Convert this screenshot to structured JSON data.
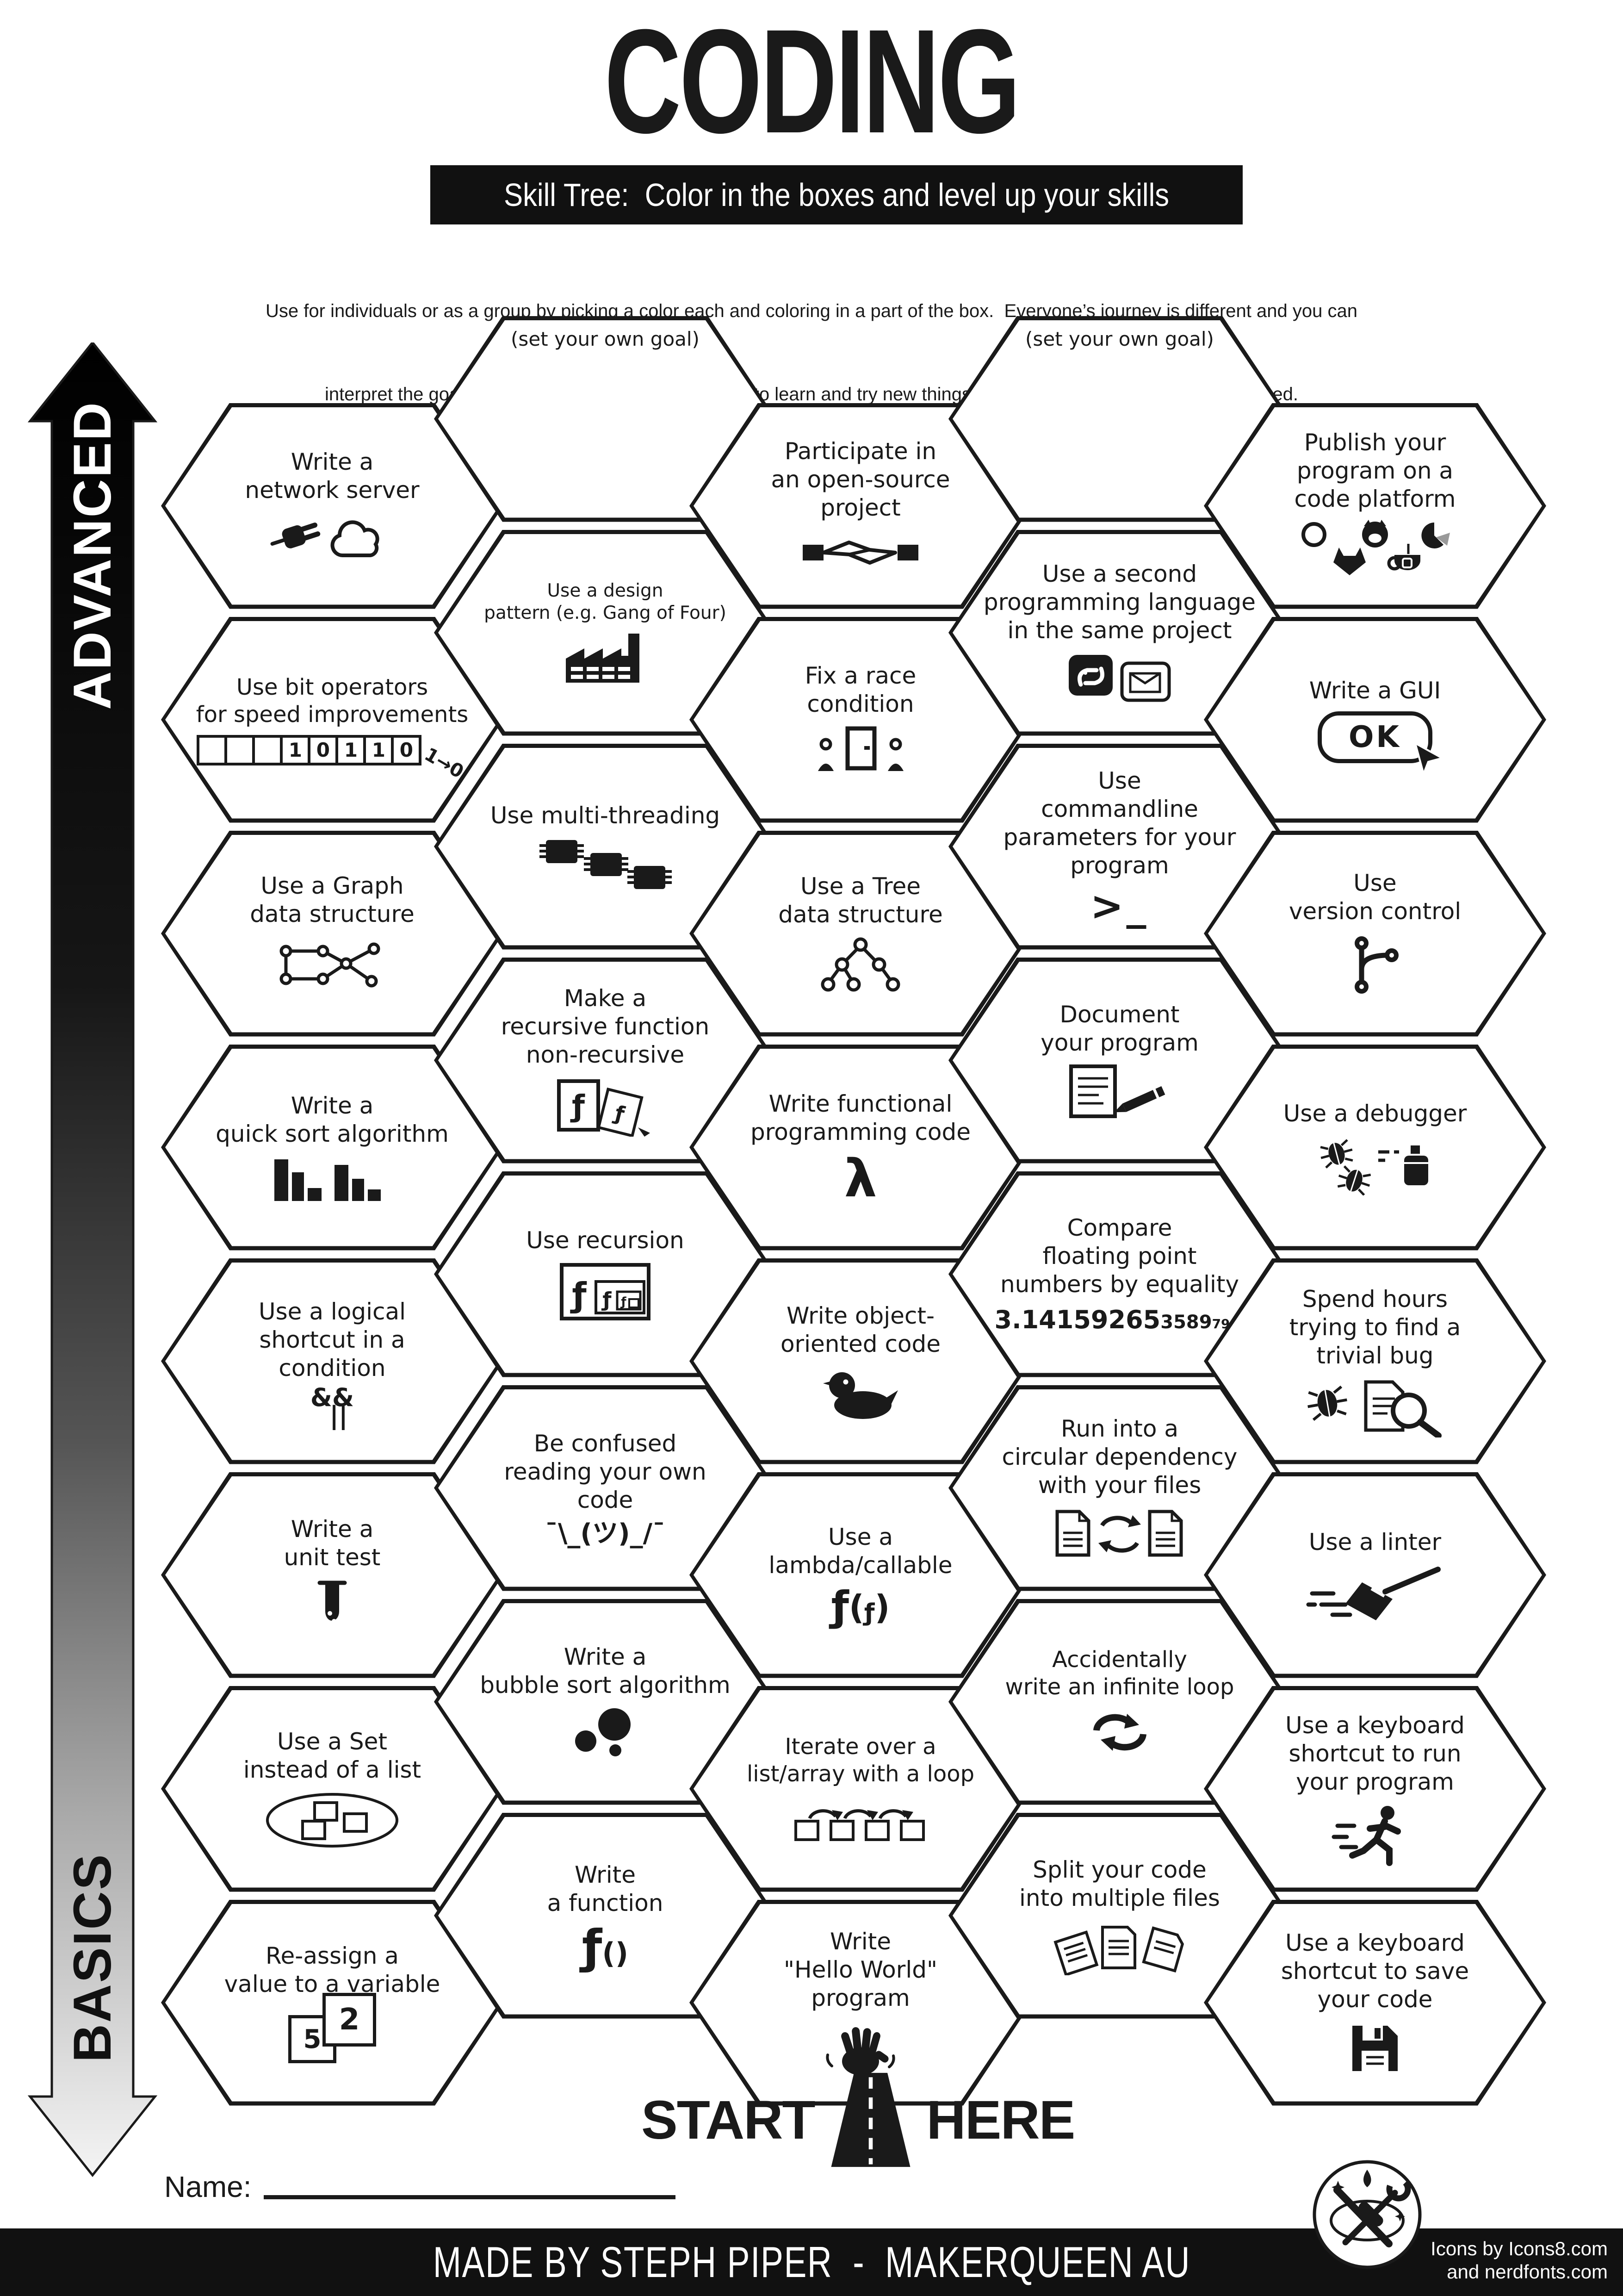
{
  "page": {
    "background": "#ffffff",
    "ink": "#1a1a1a",
    "footer_bg": "#111111"
  },
  "header": {
    "title": "CODING",
    "subtitle": "Skill Tree:  Color in the boxes and level up your skills",
    "instructions_line1": "Use for individuals or as a group by picking a color each and coloring in a part of the box.  Everyone’s journey is different and you can",
    "instructions_line2": "interpret the goals flexibly.  The aim is to inspire you to learn and try new things. Not everything needs to be completed."
  },
  "axis": {
    "top_label": "ADVANCED",
    "bottom_label": "BASICS"
  },
  "hexes": [
    {
      "col": 0,
      "row": 0,
      "label": "Write a\nnetwork server",
      "icon": "plug-cloud-icon"
    },
    {
      "col": 0,
      "row": 1,
      "label": "Use bit operators\nfor speed improvements",
      "icon": "binary-bits-icon",
      "icon_text": [
        "10110",
        "1→0"
      ]
    },
    {
      "col": 0,
      "row": 2,
      "label": "Use a Graph\ndata structure",
      "icon": "graph-nodes-icon"
    },
    {
      "col": 0,
      "row": 3,
      "label": "Write a\nquick sort algorithm",
      "icon": "sorted-bars-icon"
    },
    {
      "col": 0,
      "row": 4,
      "label": "Use a logical\nshortcut in a\ncondition",
      "icon": "logical-operators-icon",
      "icon_text": "&& ||"
    },
    {
      "col": 0,
      "row": 5,
      "label": "Write a\nunit test",
      "icon": "test-tube-icon"
    },
    {
      "col": 0,
      "row": 6,
      "label": "Use a Set\ninstead of a list",
      "icon": "set-ellipse-icon"
    },
    {
      "col": 0,
      "row": 7,
      "label": "Re-assign a\nvalue to a variable",
      "icon": "value-swap-icon",
      "icon_text": [
        "5",
        "2"
      ]
    },
    {
      "col": 1,
      "row": 0,
      "label": "(set your own goal)",
      "goal": true
    },
    {
      "col": 1,
      "row": 1,
      "label": "Use a design\npattern (e.g. Gang of Four)",
      "icon": "factory-icon"
    },
    {
      "col": 1,
      "row": 2,
      "label": "Use multi-threading",
      "icon": "cpu-chips-icon"
    },
    {
      "col": 1,
      "row": 3,
      "label": "Make a\nrecursive function\nnon-recursive",
      "icon": "function-cards-icon"
    },
    {
      "col": 1,
      "row": 4,
      "label": "Use recursion",
      "icon": "nested-functions-icon"
    },
    {
      "col": 1,
      "row": 5,
      "label": "Be confused\nreading your own\ncode",
      "icon": "shrug-icon",
      "icon_text": "¯\\_(ツ)_/¯"
    },
    {
      "col": 1,
      "row": 6,
      "label": "Write a\nbubble sort algorithm",
      "icon": "bubbles-icon"
    },
    {
      "col": 1,
      "row": 7,
      "label": "Write\na function",
      "icon": "function-icon",
      "icon_text": "ƒ()"
    },
    {
      "col": 2,
      "row": 0,
      "label": "Participate in\nan open-source\nproject",
      "icon": "handshake-icon"
    },
    {
      "col": 2,
      "row": 1,
      "label": "Fix a race\ncondition",
      "icon": "race-condition-icon"
    },
    {
      "col": 2,
      "row": 2,
      "label": "Use a Tree\ndata structure",
      "icon": "tree-structure-icon"
    },
    {
      "col": 2,
      "row": 3,
      "label": "Write functional\nprogramming code",
      "icon": "lambda-icon",
      "icon_text": "λ"
    },
    {
      "col": 2,
      "row": 4,
      "label": "Write object-\noriented code",
      "icon": "duck-icon"
    },
    {
      "col": 2,
      "row": 5,
      "label": "Use a\nlambda/callable",
      "icon": "lambda-callable-icon",
      "icon_text": "ƒ(ƒ)"
    },
    {
      "col": 2,
      "row": 6,
      "label": "Iterate over a\nlist/array with a loop",
      "icon": "loop-array-icon"
    },
    {
      "col": 2,
      "row": 7,
      "label": "Write\n\"Hello World\"\nprogram",
      "icon": "waving-hand-icon"
    },
    {
      "col": 3,
      "row": 0,
      "label": "(set your own goal)",
      "goal": true
    },
    {
      "col": 3,
      "row": 1,
      "label": "Use a second\nprogramming language\nin the same project",
      "icon": "two-languages-icon"
    },
    {
      "col": 3,
      "row": 2,
      "label": "Use\ncommandline\nparameters for your\nprogram",
      "icon": "terminal-prompt-icon",
      "icon_text": ">_"
    },
    {
      "col": 3,
      "row": 3,
      "label": "Document\nyour program",
      "icon": "document-pencil-icon"
    },
    {
      "col": 3,
      "row": 4,
      "label": "Compare\nfloating point\nnumbers by equality",
      "icon": "pi-digits-icon",
      "icon_text": "3.14159265358979..."
    },
    {
      "col": 3,
      "row": 5,
      "label": "Run into a\ncircular dependency\nwith your files",
      "icon": "circular-dependency-icon"
    },
    {
      "col": 3,
      "row": 6,
      "label": "Accidentally\nwrite an infinite loop",
      "icon": "infinite-loop-icon"
    },
    {
      "col": 3,
      "row": 7,
      "label": "Split your code\ninto multiple files",
      "icon": "split-files-icon"
    },
    {
      "col": 4,
      "row": 0,
      "label": "Publish your\nprogram on a\ncode platform",
      "icon": "code-platforms-icon"
    },
    {
      "col": 4,
      "row": 1,
      "label": "Write a GUI",
      "icon": "ok-button-icon",
      "icon_text": "OK"
    },
    {
      "col": 4,
      "row": 2,
      "label": "Use\nversion control",
      "icon": "git-branch-icon"
    },
    {
      "col": 4,
      "row": 3,
      "label": "Use a debugger",
      "icon": "debugger-icon"
    },
    {
      "col": 4,
      "row": 4,
      "label": "Spend hours\ntrying to find a\ntrivial bug",
      "icon": "bug-search-icon"
    },
    {
      "col": 4,
      "row": 5,
      "label": "Use a linter",
      "icon": "broom-icon"
    },
    {
      "col": 4,
      "row": 6,
      "label": "Use a keyboard\nshortcut to run\nyour program",
      "icon": "runner-icon"
    },
    {
      "col": 4,
      "row": 7,
      "label": "Use a keyboard\nshortcut to save\nyour code",
      "icon": "floppy-disk-icon"
    }
  ],
  "start": {
    "left": "START",
    "right": "HERE",
    "icon": "road-icon"
  },
  "name_field": {
    "label": "Name:"
  },
  "footer": {
    "credit": "MADE BY STEPH PIPER  -  MAKERQUEEN AU",
    "icons_credit_line1": "Icons by Icons8.com",
    "icons_credit_line2": "and nerdfonts.com",
    "logo": "tools-logo-icon"
  }
}
